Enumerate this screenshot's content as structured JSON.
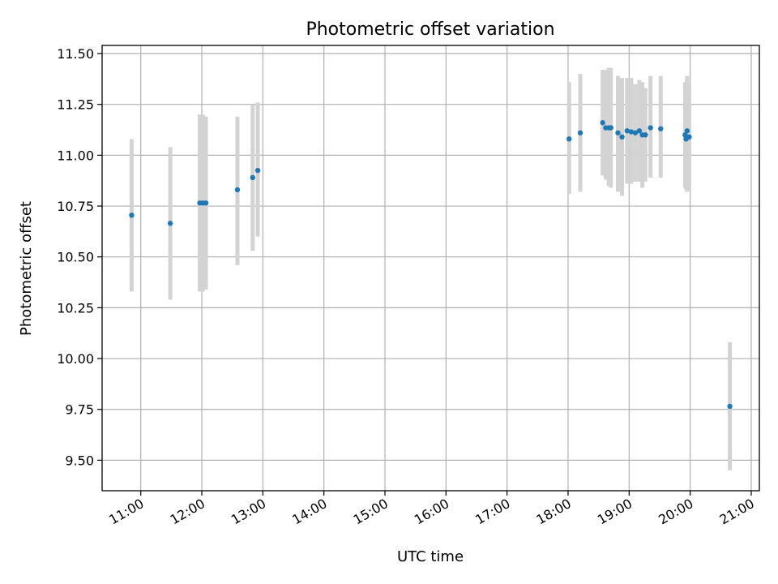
{
  "chart_data": {
    "type": "scatter",
    "title": "Photometric offset variation",
    "xlabel": "UTC time",
    "ylabel": "Photometric offset",
    "grid": true,
    "x_tick_labels": [
      "11:00",
      "12:00",
      "13:00",
      "14:00",
      "15:00",
      "16:00",
      "17:00",
      "18:00",
      "19:00",
      "20:00",
      "21:00"
    ],
    "y_tick_labels": [
      "9.50",
      "9.75",
      "10.00",
      "10.25",
      "10.50",
      "10.75",
      "11.00",
      "11.25",
      "11.50"
    ],
    "xlim": [
      "10:22",
      "21:08"
    ],
    "ylim": [
      9.35,
      11.54
    ],
    "colors": {
      "points": "#1f77b4",
      "errorbars": "#d3d3d3",
      "grid": "#b0b0b0"
    },
    "points": [
      {
        "x": "10:51",
        "y": 10.705,
        "low": 10.33,
        "high": 11.08
      },
      {
        "x": "11:29",
        "y": 10.665,
        "low": 10.29,
        "high": 11.04
      },
      {
        "x": "11:58",
        "y": 10.765,
        "low": 10.33,
        "high": 11.2
      },
      {
        "x": "12:01",
        "y": 10.765,
        "low": 10.33,
        "high": 11.2
      },
      {
        "x": "12:04",
        "y": 10.765,
        "low": 10.34,
        "high": 11.19
      },
      {
        "x": "12:35",
        "y": 10.83,
        "low": 10.46,
        "high": 11.19
      },
      {
        "x": "12:50",
        "y": 10.89,
        "low": 10.53,
        "high": 11.25
      },
      {
        "x": "12:55",
        "y": 10.925,
        "low": 10.6,
        "high": 11.26
      },
      {
        "x": "18:01",
        "y": 11.08,
        "low": 10.81,
        "high": 11.36
      },
      {
        "x": "18:12",
        "y": 11.11,
        "low": 10.82,
        "high": 11.4
      },
      {
        "x": "18:34",
        "y": 11.16,
        "low": 10.9,
        "high": 11.42
      },
      {
        "x": "18:37",
        "y": 11.135,
        "low": 10.88,
        "high": 11.42
      },
      {
        "x": "18:40",
        "y": 11.135,
        "low": 10.85,
        "high": 11.43
      },
      {
        "x": "18:42",
        "y": 11.135,
        "low": 10.84,
        "high": 11.43
      },
      {
        "x": "18:49",
        "y": 11.11,
        "low": 10.82,
        "high": 11.39
      },
      {
        "x": "18:53",
        "y": 11.09,
        "low": 10.8,
        "high": 11.38
      },
      {
        "x": "18:58",
        "y": 11.12,
        "low": 10.86,
        "high": 11.38
      },
      {
        "x": "19:02",
        "y": 11.115,
        "low": 10.86,
        "high": 11.38
      },
      {
        "x": "19:06",
        "y": 11.11,
        "low": 10.87,
        "high": 11.35
      },
      {
        "x": "19:10",
        "y": 11.12,
        "low": 10.87,
        "high": 11.37
      },
      {
        "x": "19:13",
        "y": 11.1,
        "low": 10.84,
        "high": 11.36
      },
      {
        "x": "19:16",
        "y": 11.1,
        "low": 10.87,
        "high": 11.33
      },
      {
        "x": "19:21",
        "y": 11.135,
        "low": 10.89,
        "high": 11.39
      },
      {
        "x": "19:31",
        "y": 11.13,
        "low": 10.89,
        "high": 11.39
      },
      {
        "x": "19:55",
        "y": 11.1,
        "low": 10.84,
        "high": 11.36
      },
      {
        "x": "19:56",
        "y": 11.08,
        "low": 10.83,
        "high": 11.34
      },
      {
        "x": "19:57",
        "y": 11.12,
        "low": 10.82,
        "high": 11.39
      },
      {
        "x": "19:59",
        "y": 11.09,
        "low": 10.83,
        "high": 11.35
      },
      {
        "x": "20:39",
        "y": 9.765,
        "low": 9.45,
        "high": 10.08
      }
    ]
  }
}
